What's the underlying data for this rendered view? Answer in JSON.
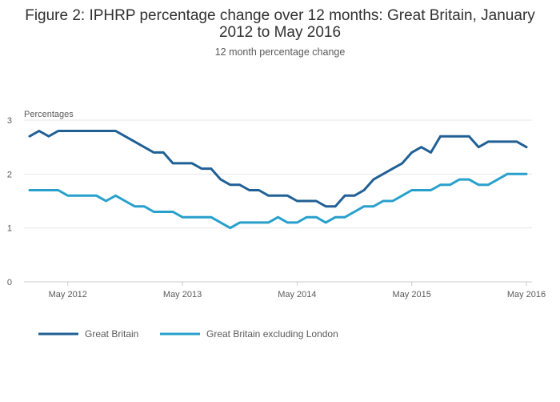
{
  "chart_data": {
    "type": "line",
    "title_line1": "Figure 2: IPHRP percentage change over 12 months: Great Britain, January",
    "title_line2": "2012 to May 2016",
    "subtitle": "12 month percentage change",
    "ylabel": "Percentages",
    "xlabel": "",
    "ylim": [
      0,
      3
    ],
    "yticks": [
      0,
      1,
      2,
      3
    ],
    "x_start": "2012-01",
    "x_end": "2016-05",
    "xticks": [
      {
        "month": "2012-05",
        "label": "May 2012"
      },
      {
        "month": "2013-05",
        "label": "May 2013"
      },
      {
        "month": "2014-05",
        "label": "May 2014"
      },
      {
        "month": "2015-05",
        "label": "May 2015"
      },
      {
        "month": "2016-05",
        "label": "May 2016"
      }
    ],
    "grid": true,
    "legend_position": "bottom-left",
    "x": [
      "2012-01",
      "2012-02",
      "2012-03",
      "2012-04",
      "2012-05",
      "2012-06",
      "2012-07",
      "2012-08",
      "2012-09",
      "2012-10",
      "2012-11",
      "2012-12",
      "2013-01",
      "2013-02",
      "2013-03",
      "2013-04",
      "2013-05",
      "2013-06",
      "2013-07",
      "2013-08",
      "2013-09",
      "2013-10",
      "2013-11",
      "2013-12",
      "2014-01",
      "2014-02",
      "2014-03",
      "2014-04",
      "2014-05",
      "2014-06",
      "2014-07",
      "2014-08",
      "2014-09",
      "2014-10",
      "2014-11",
      "2014-12",
      "2015-01",
      "2015-02",
      "2015-03",
      "2015-04",
      "2015-05",
      "2015-06",
      "2015-07",
      "2015-08",
      "2015-09",
      "2015-10",
      "2015-11",
      "2015-12",
      "2016-01",
      "2016-02",
      "2016-03",
      "2016-04",
      "2016-05"
    ],
    "series": [
      {
        "name": "Great Britain",
        "color": "#206095",
        "values": [
          2.7,
          2.8,
          2.7,
          2.8,
          2.8,
          2.8,
          2.8,
          2.8,
          2.8,
          2.8,
          2.7,
          2.6,
          2.5,
          2.4,
          2.4,
          2.2,
          2.2,
          2.2,
          2.1,
          2.1,
          1.9,
          1.8,
          1.8,
          1.7,
          1.7,
          1.6,
          1.6,
          1.6,
          1.5,
          1.5,
          1.5,
          1.4,
          1.4,
          1.6,
          1.6,
          1.7,
          1.9,
          2.0,
          2.1,
          2.2,
          2.4,
          2.5,
          2.4,
          2.7,
          2.7,
          2.7,
          2.7,
          2.5,
          2.6,
          2.6,
          2.6,
          2.6,
          2.5
        ]
      },
      {
        "name": "Great Britain excluding London",
        "color": "#27a0cc",
        "values": [
          1.7,
          1.7,
          1.7,
          1.7,
          1.6,
          1.6,
          1.6,
          1.6,
          1.5,
          1.6,
          1.5,
          1.4,
          1.4,
          1.3,
          1.3,
          1.3,
          1.2,
          1.2,
          1.2,
          1.2,
          1.1,
          1.0,
          1.1,
          1.1,
          1.1,
          1.1,
          1.2,
          1.1,
          1.1,
          1.2,
          1.2,
          1.1,
          1.2,
          1.2,
          1.3,
          1.4,
          1.4,
          1.5,
          1.5,
          1.6,
          1.7,
          1.7,
          1.7,
          1.8,
          1.8,
          1.9,
          1.9,
          1.8,
          1.8,
          1.9,
          2.0,
          2.0,
          2.0
        ]
      }
    ]
  }
}
